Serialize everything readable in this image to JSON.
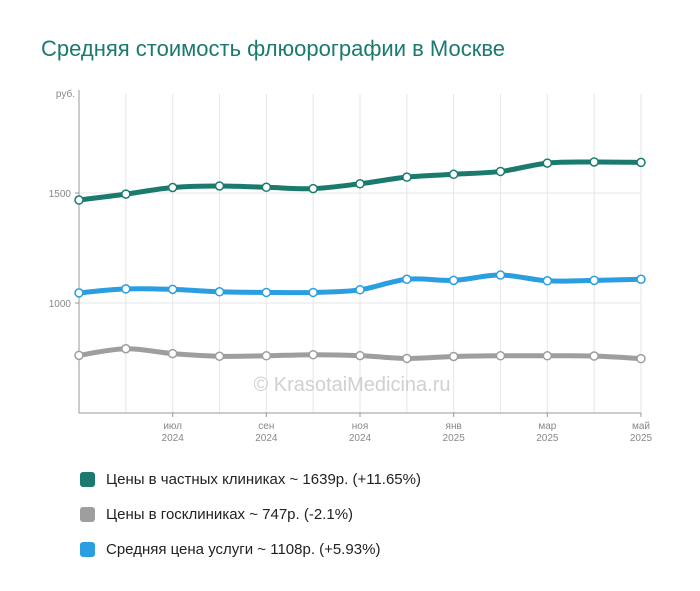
{
  "title": "Средняя стоимость флюорографии в Москве",
  "watermark": "© KrasotaiMedicina.ru",
  "colors": {
    "private": "#1a7a6e",
    "public": "#9e9e9e",
    "average": "#2a9ee0",
    "grid": "#e6e6e6",
    "axis": "#999999"
  },
  "chart_data": {
    "type": "line",
    "y_unit": "руб.",
    "ylim": [
      500,
      1950
    ],
    "yticks": [
      1000,
      1500
    ],
    "x": [
      "2024-05",
      "2024-06",
      "2024-07",
      "2024-08",
      "2024-09",
      "2024-10",
      "2024-11",
      "2024-12",
      "2025-01",
      "2025-02",
      "2025-03",
      "2025-04",
      "2025-05"
    ],
    "x_tick_labels": [
      {
        "month": "июл",
        "year": "2024"
      },
      {
        "month": "сен",
        "year": "2024"
      },
      {
        "month": "ноя",
        "year": "2024"
      },
      {
        "month": "янв",
        "year": "2025"
      },
      {
        "month": "мар",
        "year": "2025"
      },
      {
        "month": "май",
        "year": "2025"
      }
    ],
    "grid": true,
    "legend_position": "bottom",
    "series": [
      {
        "key": "private",
        "name": "Цены в частных клиниках ~ 1639р. (+11.65%)",
        "values": [
          1468,
          1495,
          1525,
          1532,
          1526,
          1520,
          1542,
          1572,
          1585,
          1598,
          1636,
          1641,
          1639
        ]
      },
      {
        "key": "average",
        "name": "Средняя цена услуги ~ 1108р. (+5.93%)",
        "values": [
          1046,
          1064,
          1062,
          1051,
          1048,
          1048,
          1060,
          1108,
          1103,
          1127,
          1101,
          1103,
          1108
        ]
      },
      {
        "key": "public",
        "name": "Цены в госклиниках ~ 747р. (-2.1%)",
        "values": [
          762,
          792,
          770,
          758,
          760,
          765,
          761,
          748,
          757,
          760,
          760,
          759,
          747
        ]
      }
    ]
  },
  "legend": [
    {
      "key": "private",
      "label": "Цены в частных клиниках ~ 1639р. (+11.65%)"
    },
    {
      "key": "public",
      "label": "Цены в госклиниках ~ 747р. (-2.1%)"
    },
    {
      "key": "average",
      "label": "Средняя цена услуги ~ 1108р. (+5.93%)"
    }
  ]
}
